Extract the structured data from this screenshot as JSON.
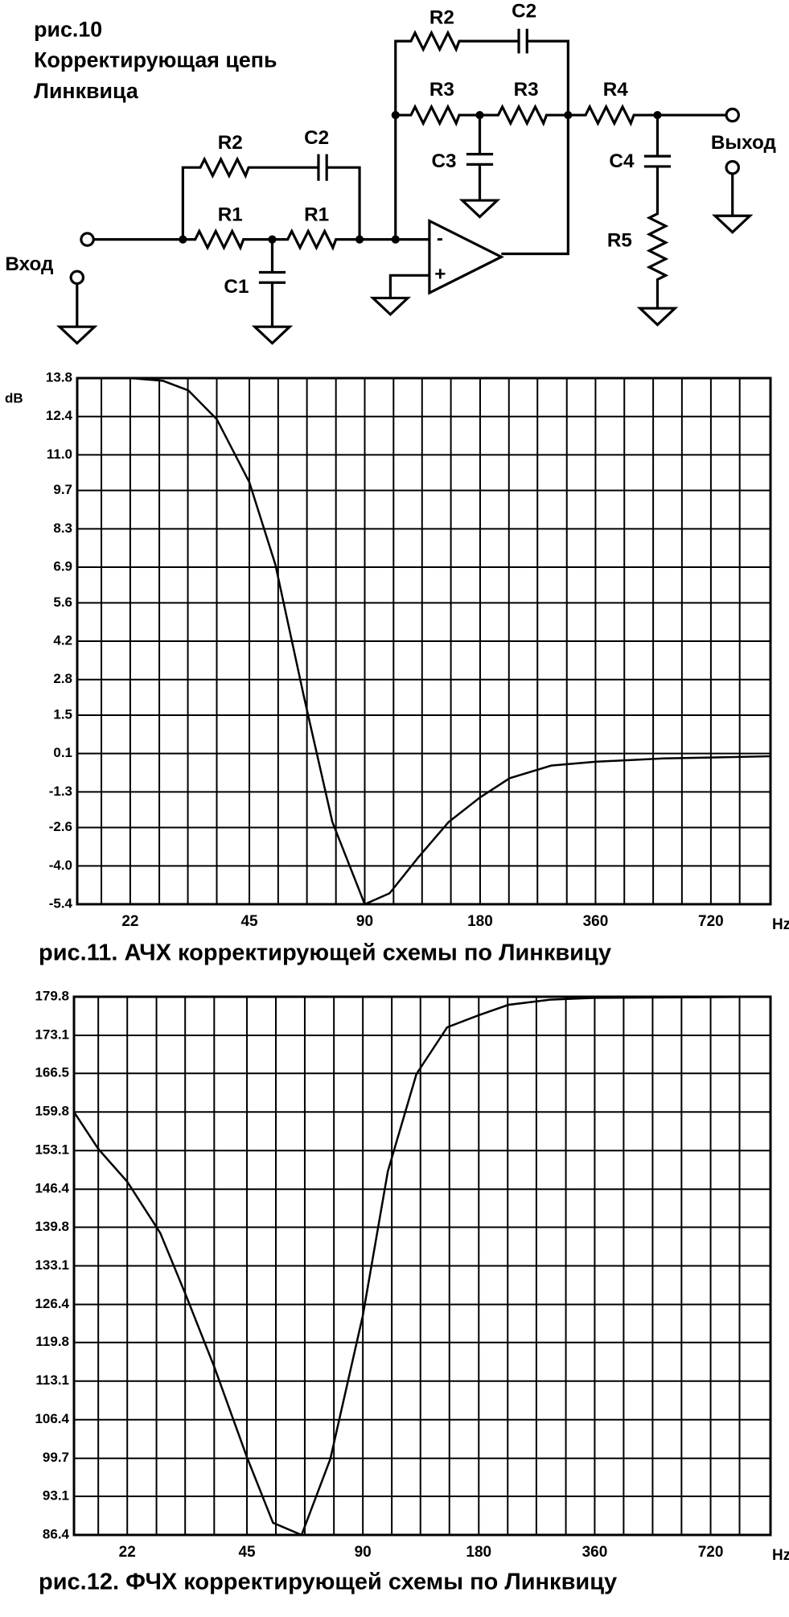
{
  "diagram": {
    "figure_label": "рис.10",
    "title_lines": [
      "Корректирующая цепь",
      "Линквица"
    ],
    "labels": [
      "R2",
      "C2",
      "R1",
      "R1",
      "C1",
      "Вход",
      "R2",
      "C2",
      "R3",
      "R3",
      "C3",
      "R4",
      "C4",
      "R5",
      "Выход",
      "-",
      "+"
    ]
  },
  "chart_data": [
    {
      "type": "line",
      "title": "рис.11. АЧХ корректирующей схемы по Линквицу",
      "ylabel": "dB",
      "xlabel": "Hz",
      "xscale": "log",
      "grid": true,
      "color": "#000000",
      "xlim": [
        16,
        1030
      ],
      "xticks": [
        22,
        45,
        90,
        180,
        360,
        720
      ],
      "xminor": [
        18.5,
        26.2,
        31.1,
        37,
        53.5,
        63.6,
        75.7,
        107,
        127,
        151,
        214,
        254,
        303,
        428,
        509,
        605,
        856
      ],
      "ylim": [
        -5.4,
        13.8
      ],
      "yticks": [
        13.8,
        12.4,
        {
          "value": 11,
          "label": "11.0"
        },
        9.7,
        8.3,
        6.9,
        5.6,
        4.2,
        2.8,
        1.5,
        0.1,
        -1.3,
        -2.6,
        {
          "value": -4,
          "label": "-4.0"
        },
        -5.4
      ],
      "x": [
        16,
        22,
        26.8,
        31.2,
        37,
        45,
        52.6,
        62.4,
        74.1,
        90,
        104.5,
        124,
        149,
        180,
        215,
        276,
        360,
        541,
        1030
      ],
      "values": [
        13.8,
        13.8,
        13.7,
        13.35,
        12.3,
        10.0,
        7.0,
        2.2,
        -2.4,
        -5.4,
        -5.0,
        -3.7,
        -2.4,
        -1.5,
        -0.8,
        -0.34,
        -0.2,
        -0.08,
        0
      ]
    },
    {
      "type": "line",
      "title": "рис.12. ФЧХ корректирующей схемы по Линквицу",
      "xlabel": "Hz",
      "xscale": "log",
      "grid": true,
      "color": "#000000",
      "xlim": [
        16,
        1030
      ],
      "xticks": [
        22,
        45,
        90,
        180,
        360,
        720
      ],
      "xminor": [
        18.5,
        26.2,
        31.1,
        37,
        53.5,
        63.6,
        75.7,
        107,
        127,
        151,
        214,
        254,
        303,
        428,
        509,
        605,
        856
      ],
      "ylim": [
        86.4,
        179.8
      ],
      "yticks": [
        179.8,
        173.1,
        166.5,
        159.8,
        153.1,
        146.4,
        139.8,
        133.1,
        126.4,
        119.8,
        113.1,
        106.4,
        99.7,
        93.1,
        86.4
      ],
      "x": [
        16,
        18.5,
        22,
        26.8,
        31.2,
        37,
        45,
        52.6,
        62.4,
        74.1,
        90,
        104.5,
        124,
        149,
        180,
        215,
        276,
        360,
        1030
      ],
      "values": [
        159.8,
        153.4,
        147.7,
        138.8,
        128.1,
        115.6,
        99.9,
        88.5,
        86.4,
        99.6,
        124.5,
        149.5,
        166.4,
        174.5,
        176.6,
        178.4,
        179.3,
        179.6,
        179.8
      ]
    }
  ]
}
